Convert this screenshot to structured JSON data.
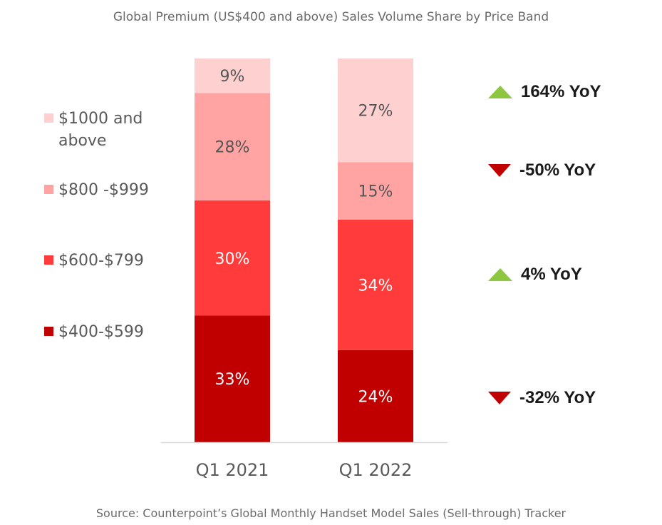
{
  "chart_data": {
    "type": "bar",
    "stacked": true,
    "title": "Global Premium (US$400 and above) Sales Volume Share by Price Band",
    "categories": [
      "Q1 2021",
      "Q1 2022"
    ],
    "series": [
      {
        "name": "$400-$599",
        "values": [
          33,
          24
        ],
        "labels": [
          "33%",
          "24%"
        ],
        "color": "#c00000"
      },
      {
        "name": "$600-$799",
        "values": [
          30,
          34
        ],
        "labels": [
          "30%",
          "34%"
        ],
        "color": "#ff3b3b"
      },
      {
        "name": "$800 -$999",
        "values": [
          28,
          15
        ],
        "labels": [
          "28%",
          "15%"
        ],
        "color": "#ffa3a3"
      },
      {
        "name": "$1000 and above",
        "values": [
          9,
          27
        ],
        "labels": [
          "9%",
          "27%"
        ],
        "color": "#ffd0d0"
      }
    ],
    "ylim": [
      0,
      100
    ],
    "unit": "%",
    "source": "Source: Counterpoint’s Global Monthly Handset Model Sales (Sell-through) Tracker"
  },
  "legend": [
    {
      "label_line1": "$1000 and",
      "label_line2": "above",
      "color": "#ffd0d0"
    },
    {
      "label_line1": "$800 -$999",
      "label_line2": "",
      "color": "#ffa3a3"
    },
    {
      "label_line1": "$600-$799",
      "label_line2": "",
      "color": "#ff3b3b"
    },
    {
      "label_line1": "$400-$599",
      "label_line2": "",
      "color": "#c00000"
    }
  ],
  "yoy": [
    {
      "text": "164% YoY",
      "direction": "up"
    },
    {
      "text": "-50% YoY",
      "direction": "down"
    },
    {
      "text": "4% YoY",
      "direction": "up"
    },
    {
      "text": "-32% YoY",
      "direction": "down"
    }
  ],
  "colors": {
    "up": "#8dc63f",
    "down": "#c00000",
    "axis": "#d9d9d9"
  }
}
